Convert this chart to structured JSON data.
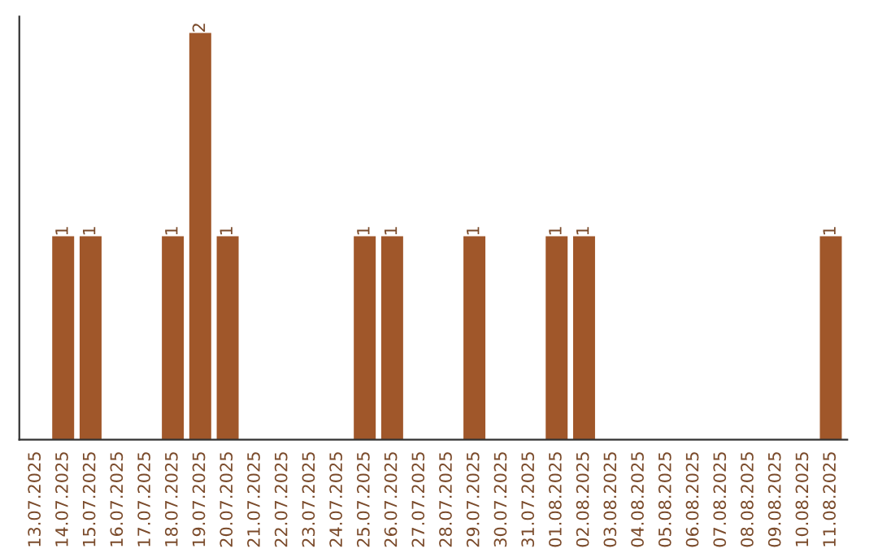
{
  "chart_data": {
    "type": "bar",
    "categories": [
      "13.07.2025",
      "14.07.2025",
      "15.07.2025",
      "16.07.2025",
      "17.07.2025",
      "18.07.2025",
      "19.07.2025",
      "20.07.2025",
      "21.07.2025",
      "22.07.2025",
      "23.07.2025",
      "24.07.2025",
      "25.07.2025",
      "26.07.2025",
      "27.07.2025",
      "28.07.2025",
      "29.07.2025",
      "30.07.2025",
      "31.07.2025",
      "01.08.2025",
      "02.08.2025",
      "03.08.2025",
      "04.08.2025",
      "05.08.2025",
      "06.08.2025",
      "07.08.2025",
      "08.08.2025",
      "09.08.2025",
      "10.08.2025",
      "11.08.2025"
    ],
    "values": [
      0,
      1,
      1,
      0,
      0,
      1,
      2,
      1,
      0,
      0,
      0,
      0,
      1,
      1,
      0,
      0,
      1,
      0,
      0,
      1,
      1,
      0,
      0,
      0,
      0,
      0,
      0,
      0,
      0,
      1
    ],
    "value_labels": [
      null,
      "1",
      "1",
      null,
      null,
      "1",
      "2",
      "1",
      null,
      null,
      null,
      null,
      "1",
      "1",
      null,
      null,
      "1",
      null,
      null,
      "1",
      "1",
      null,
      null,
      null,
      null,
      null,
      null,
      null,
      null,
      "1"
    ],
    "color": "#a0572a",
    "tick_labels": "x",
    "grid": false,
    "legend": false
  }
}
